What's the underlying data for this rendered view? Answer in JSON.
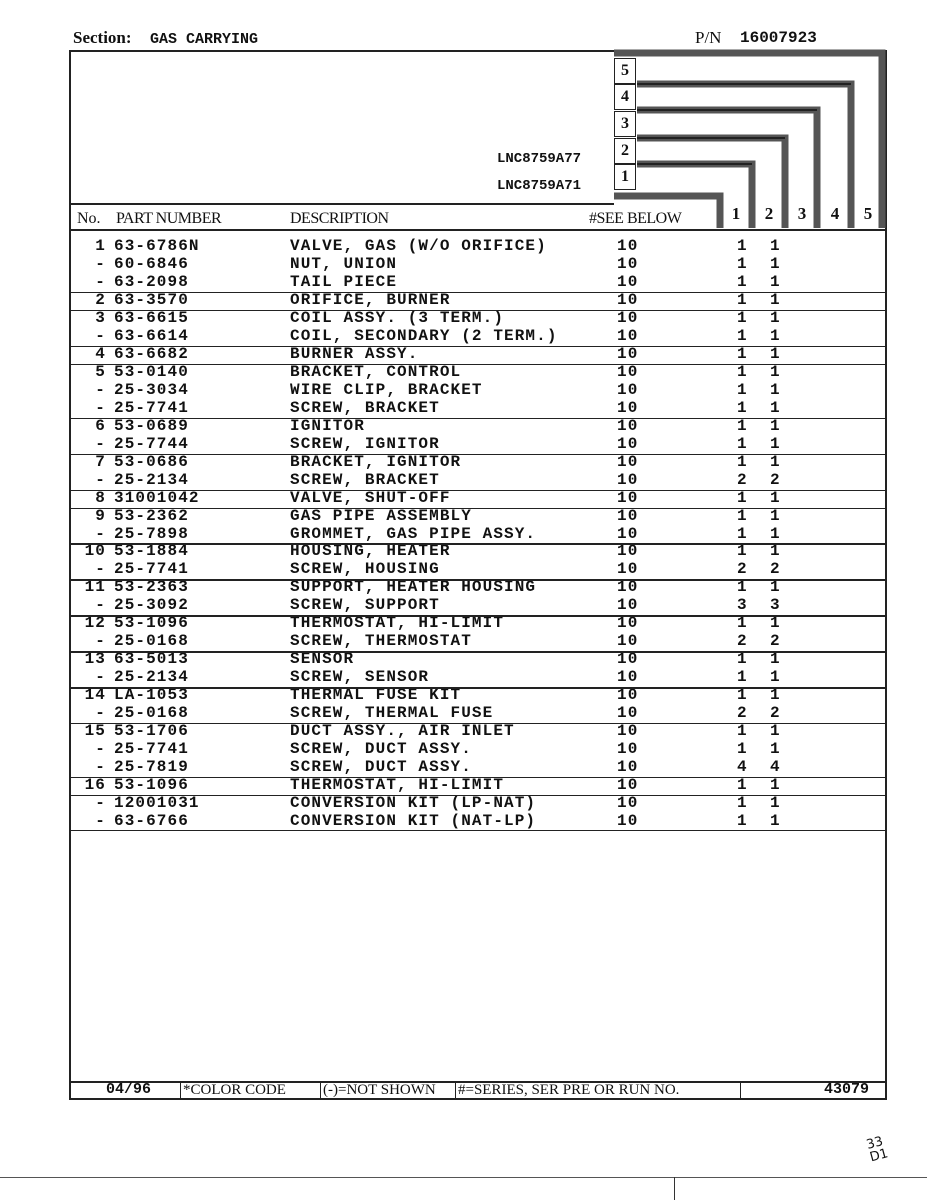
{
  "header": {
    "section_label": "Section:",
    "section_value": "GAS CARRYING",
    "pn_label": "P/N",
    "pn_value": "16007923"
  },
  "models": [
    {
      "num": "1",
      "name": "LNC8759A71"
    },
    {
      "num": "2",
      "name": "LNC8759A77"
    },
    {
      "num": "3",
      "name": ""
    },
    {
      "num": "4",
      "name": ""
    },
    {
      "num": "5",
      "name": ""
    }
  ],
  "columns": {
    "no": "No.",
    "part_number": "PART NUMBER",
    "description": "DESCRIPTION",
    "see_below": "#SEE BELOW",
    "model_cols": [
      "1",
      "2",
      "3",
      "4",
      "5"
    ]
  },
  "rows": [
    {
      "no": "1",
      "part": "63-6786N",
      "desc": "VALVE, GAS (W/O ORIFICE)",
      "see": "10",
      "q1": "1",
      "q2": "1"
    },
    {
      "no": "-",
      "part": "60-6846",
      "desc": "NUT, UNION",
      "see": "10",
      "q1": "1",
      "q2": "1"
    },
    {
      "no": "-",
      "part": "63-2098",
      "desc": "TAIL PIECE",
      "see": "10",
      "q1": "1",
      "q2": "1"
    },
    {
      "no": "2",
      "part": "63-3570",
      "desc": "ORIFICE, BURNER",
      "see": "10",
      "q1": "1",
      "q2": "1"
    },
    {
      "no": "3",
      "part": "63-6615",
      "desc": "COIL ASSY. (3 TERM.)",
      "see": "10",
      "q1": "1",
      "q2": "1"
    },
    {
      "no": "-",
      "part": "63-6614",
      "desc": "COIL, SECONDARY (2 TERM.)",
      "see": "10",
      "q1": "1",
      "q2": "1"
    },
    {
      "no": "4",
      "part": "63-6682",
      "desc": "BURNER ASSY.",
      "see": "10",
      "q1": "1",
      "q2": "1"
    },
    {
      "no": "5",
      "part": "53-0140",
      "desc": "BRACKET, CONTROL",
      "see": "10",
      "q1": "1",
      "q2": "1"
    },
    {
      "no": "-",
      "part": "25-3034",
      "desc": "WIRE CLIP, BRACKET",
      "see": "10",
      "q1": "1",
      "q2": "1"
    },
    {
      "no": "-",
      "part": "25-7741",
      "desc": "SCREW, BRACKET",
      "see": "10",
      "q1": "1",
      "q2": "1"
    },
    {
      "no": "6",
      "part": "53-0689",
      "desc": "IGNITOR",
      "see": "10",
      "q1": "1",
      "q2": "1"
    },
    {
      "no": "-",
      "part": "25-7744",
      "desc": "SCREW, IGNITOR",
      "see": "10",
      "q1": "1",
      "q2": "1"
    },
    {
      "no": "7",
      "part": "53-0686",
      "desc": "BRACKET, IGNITOR",
      "see": "10",
      "q1": "1",
      "q2": "1"
    },
    {
      "no": "-",
      "part": "25-2134",
      "desc": "SCREW, BRACKET",
      "see": "10",
      "q1": "2",
      "q2": "2"
    },
    {
      "no": "8",
      "part": "31001042",
      "desc": "VALVE, SHUT-OFF",
      "see": "10",
      "q1": "1",
      "q2": "1"
    },
    {
      "no": "9",
      "part": "53-2362",
      "desc": "GAS PIPE ASSEMBLY",
      "see": "10",
      "q1": "1",
      "q2": "1"
    },
    {
      "no": "-",
      "part": "25-7898",
      "desc": "GROMMET, GAS PIPE ASSY.",
      "see": "10",
      "q1": "1",
      "q2": "1"
    },
    {
      "no": "10",
      "part": "53-1884",
      "desc": "HOUSING, HEATER",
      "see": "10",
      "q1": "1",
      "q2": "1"
    },
    {
      "no": "-",
      "part": "25-7741",
      "desc": "SCREW, HOUSING",
      "see": "10",
      "q1": "2",
      "q2": "2"
    },
    {
      "no": "11",
      "part": "53-2363",
      "desc": "SUPPORT, HEATER HOUSING",
      "see": "10",
      "q1": "1",
      "q2": "1"
    },
    {
      "no": "-",
      "part": "25-3092",
      "desc": "SCREW, SUPPORT",
      "see": "10",
      "q1": "3",
      "q2": "3"
    },
    {
      "no": "12",
      "part": "53-1096",
      "desc": "THERMOSTAT, HI-LIMIT",
      "see": "10",
      "q1": "1",
      "q2": "1"
    },
    {
      "no": "-",
      "part": "25-0168",
      "desc": "SCREW, THERMOSTAT",
      "see": "10",
      "q1": "2",
      "q2": "2"
    },
    {
      "no": "13",
      "part": "63-5013",
      "desc": "SENSOR",
      "see": "10",
      "q1": "1",
      "q2": "1"
    },
    {
      "no": "-",
      "part": "25-2134",
      "desc": "SCREW, SENSOR",
      "see": "10",
      "q1": "1",
      "q2": "1"
    },
    {
      "no": "14",
      "part": "LA-1053",
      "desc": "THERMAL FUSE KIT",
      "see": "10",
      "q1": "1",
      "q2": "1"
    },
    {
      "no": "-",
      "part": "25-0168",
      "desc": "SCREW, THERMAL FUSE",
      "see": "10",
      "q1": "2",
      "q2": "2"
    },
    {
      "no": "15",
      "part": "53-1706",
      "desc": "DUCT ASSY., AIR INLET",
      "see": "10",
      "q1": "1",
      "q2": "1"
    },
    {
      "no": "-",
      "part": "25-7741",
      "desc": "SCREW, DUCT ASSY.",
      "see": "10",
      "q1": "1",
      "q2": "1"
    },
    {
      "no": "-",
      "part": "25-7819",
      "desc": "SCREW, DUCT ASSY.",
      "see": "10",
      "q1": "4",
      "q2": "4"
    },
    {
      "no": "16",
      "part": "53-1096",
      "desc": "THERMOSTAT, HI-LIMIT",
      "see": "10",
      "q1": "1",
      "q2": "1"
    },
    {
      "no": "-",
      "part": "12001031",
      "desc": "CONVERSION KIT (LP-NAT)",
      "see": "10",
      "q1": "1",
      "q2": "1"
    },
    {
      "no": "-",
      "part": "63-6766",
      "desc": "CONVERSION KIT (NAT-LP)",
      "see": "10",
      "q1": "1",
      "q2": "1"
    }
  ],
  "footer": {
    "date": "04/96",
    "color_code": "*COLOR CODE",
    "not_shown": "(-)=NOT SHOWN",
    "series": "#=SERIES, SER PRE OR RUN NO.",
    "doc_number": "43079"
  },
  "handwritten_note": "33 D1"
}
